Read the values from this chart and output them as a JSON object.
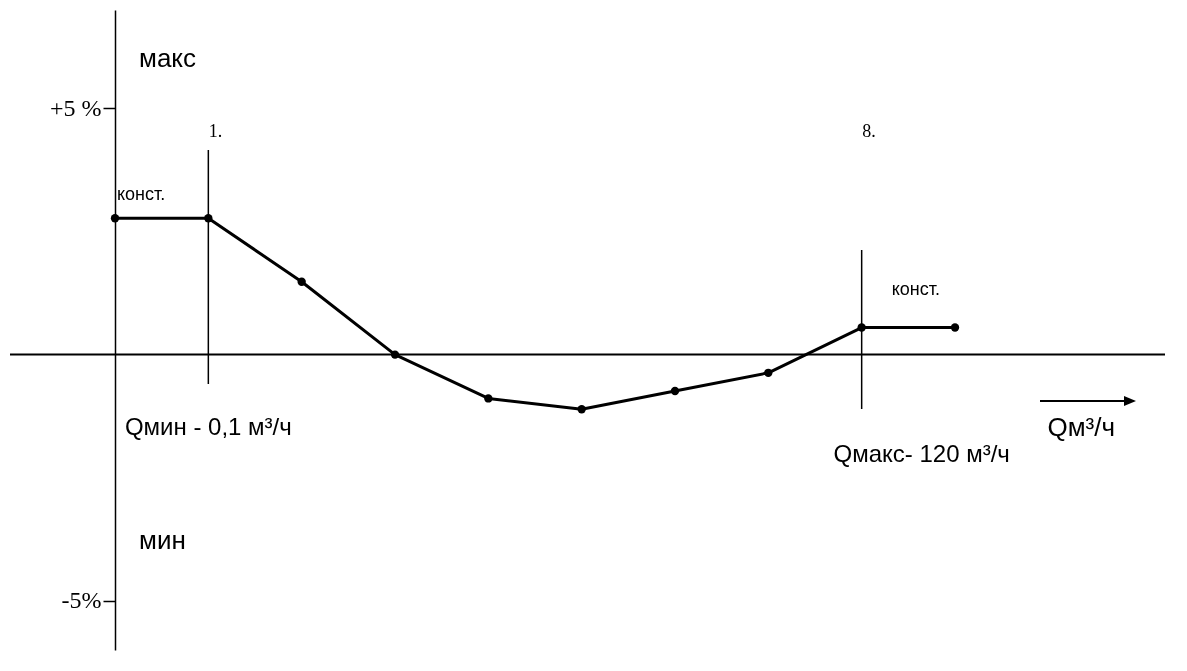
{
  "chart_data": {
    "type": "line",
    "xlabel": "Qм³/ч",
    "categories": [
      null,
      "1.",
      null,
      null,
      null,
      null,
      null,
      null,
      "8.",
      null
    ],
    "series": [
      {
        "color": "#000000",
        "values": [
          2.77,
          2.77,
          1.48,
          0,
          -0.89,
          -1.11,
          -0.74,
          -0.37,
          0.55,
          0.55
        ]
      }
    ],
    "ylim": [
      -6,
      7
    ],
    "yticks": [
      {
        "value": 5,
        "label": "+5 %"
      },
      {
        "value": -5,
        "label": "-5%"
      }
    ],
    "ref_lines": [
      {
        "axis": "y",
        "value": 0
      },
      {
        "axis": "x",
        "value": "1."
      },
      {
        "axis": "x",
        "value": "8."
      }
    ],
    "annotations": [
      "макс",
      "мин",
      "конст.",
      "конст.",
      "Qмин - 0,1 м³/ч",
      "Qмакс- 120 м³/ч"
    ],
    "marker": "circle"
  }
}
